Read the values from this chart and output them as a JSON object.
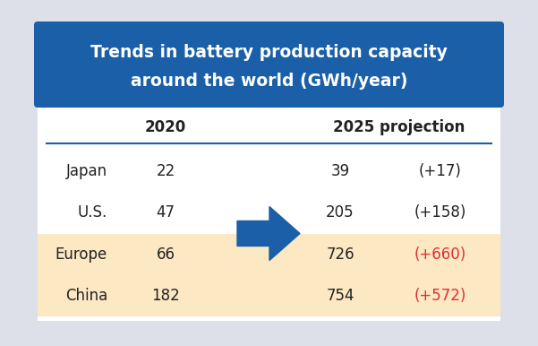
{
  "title_line1": "Trends in battery production capacity",
  "title_line2": "around the world (GWh/year)",
  "title_bg": "#1a5fa8",
  "title_text_color": "#ffffff",
  "header_2020": "2020",
  "header_2025": "2025 projection",
  "header_text_color": "#222222",
  "separator_color": "#1a5fa8",
  "outer_bg": "#dde0e8",
  "inner_bg": "#ffffff",
  "highlight_bg": "#fce8c3",
  "rows": [
    {
      "region": "Japan",
      "v2020": "22",
      "v2025": "39",
      "delta": "(+17)",
      "highlight": false,
      "delta_color": "#222222"
    },
    {
      "region": "U.S.",
      "v2020": "47",
      "v2025": "205",
      "delta": "(+158)",
      "highlight": false,
      "delta_color": "#222222"
    },
    {
      "region": "Europe",
      "v2020": "66",
      "v2025": "726",
      "delta": "(+660)",
      "highlight": true,
      "delta_color": "#e03030"
    },
    {
      "region": "China",
      "v2020": "182",
      "v2025": "754",
      "delta": "(+572)",
      "highlight": true,
      "delta_color": "#e03030"
    }
  ],
  "arrow_color": "#1a5fa8",
  "title_fontsize": 13.5,
  "header_fontsize": 12,
  "row_fontsize": 12
}
